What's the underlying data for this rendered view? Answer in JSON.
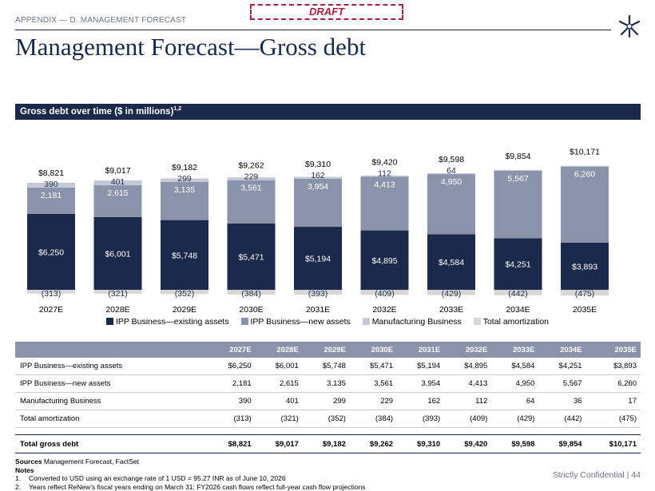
{
  "header": {
    "appendix": "APPENDIX — D. MANAGEMENT FORECAST",
    "draft": "DRAFT",
    "title": "Management Forecast—Gross debt",
    "section_title": "Gross debt over time ($ in millions)",
    "section_sup": "1,2"
  },
  "colors": {
    "navy": "#1b2a4a",
    "existing": "#1b2a4a",
    "new_assets": "#8b93aa",
    "manufacturing": "#c5c9d6",
    "amortization": "#d6d6d6",
    "draft": "#a5203f"
  },
  "chart_data": {
    "type": "bar",
    "stacked": true,
    "categories": [
      "2027E",
      "2028E",
      "2029E",
      "2030E",
      "2031E",
      "2032E",
      "2033E",
      "2034E",
      "2035E"
    ],
    "series": [
      {
        "name": "IPP Business—existing assets",
        "values": [
          6250,
          6001,
          5748,
          5471,
          5194,
          4895,
          4584,
          4251,
          3893
        ],
        "labels": [
          "$6,250",
          "$6,001",
          "$5,748",
          "$5,471",
          "$5,194",
          "$4,895",
          "$4,584",
          "$4,251",
          "$3,893"
        ]
      },
      {
        "name": "IPP Business—new assets",
        "values": [
          2181,
          2615,
          3135,
          3561,
          3954,
          4413,
          4950,
          5567,
          6260
        ],
        "labels": [
          "2,181",
          "2,615",
          "3,135",
          "3,561",
          "3,954",
          "4,413",
          "4,950",
          "5,567",
          "6,260"
        ]
      },
      {
        "name": "Manufacturing Business",
        "values": [
          390,
          401,
          299,
          229,
          162,
          112,
          64,
          36,
          17
        ],
        "labels": [
          "390",
          "401",
          "299",
          "229",
          "162",
          "112",
          "64",
          "",
          ""
        ]
      },
      {
        "name": "Total amortization",
        "values": [
          -313,
          -321,
          -352,
          -384,
          -393,
          -409,
          -429,
          -442,
          -475
        ],
        "labels": [
          "(313)",
          "(321)",
          "(352)",
          "(384)",
          "(393)",
          "(409)",
          "(429)",
          "(442)",
          "(475)"
        ]
      }
    ],
    "totals": [
      "$8,821",
      "$9,017",
      "$9,182",
      "$9,262",
      "$9,310",
      "$9,420",
      "$9,598",
      "$9,854",
      "$10,171"
    ],
    "total_values": [
      8821,
      9017,
      9182,
      9262,
      9310,
      9420,
      9598,
      9854,
      10171
    ],
    "legend_position": "bottom",
    "grid": false
  },
  "table": {
    "columns": [
      "",
      "2027E",
      "2028E",
      "2029E",
      "2030E",
      "2031E",
      "2032E",
      "2033E",
      "2034E",
      "2035E"
    ],
    "rows": [
      [
        "IPP Business—existing assets",
        "$6,250",
        "$6,001",
        "$5,748",
        "$5,471",
        "$5,194",
        "$4,895",
        "$4,584",
        "$4,251",
        "$3,893"
      ],
      [
        "IPP Business—new assets",
        "2,181",
        "2,615",
        "3,135",
        "3,561",
        "3,954",
        "4,413",
        "4,950",
        "5,567",
        "6,260"
      ],
      [
        "Manufacturing Business",
        "390",
        "401",
        "299",
        "229",
        "162",
        "112",
        "64",
        "36",
        "17"
      ],
      [
        "Total amortization",
        "(313)",
        "(321)",
        "(352)",
        "(384)",
        "(393)",
        "(409)",
        "(429)",
        "(442)",
        "(475)"
      ]
    ],
    "total_row": [
      "Total gross debt",
      "$8,821",
      "$9,017",
      "$9,182",
      "$9,262",
      "$9,310",
      "$9,420",
      "$9,598",
      "$9,854",
      "$10,171"
    ]
  },
  "footer": {
    "sources_label": "Sources",
    "sources": "Management Forecast, FactSet",
    "notes_label": "Notes",
    "notes": [
      "Converted to USD using an exchange rate of 1 USD = 95.27 INR as of June 10, 2026",
      "Years reflect ReNew’s fiscal years ending on March 31; FY2026 cash flows reflect full-year cash flow projections"
    ],
    "note_numbers": [
      "1.",
      "2."
    ],
    "confidential": "Strictly Confidential | 44"
  }
}
